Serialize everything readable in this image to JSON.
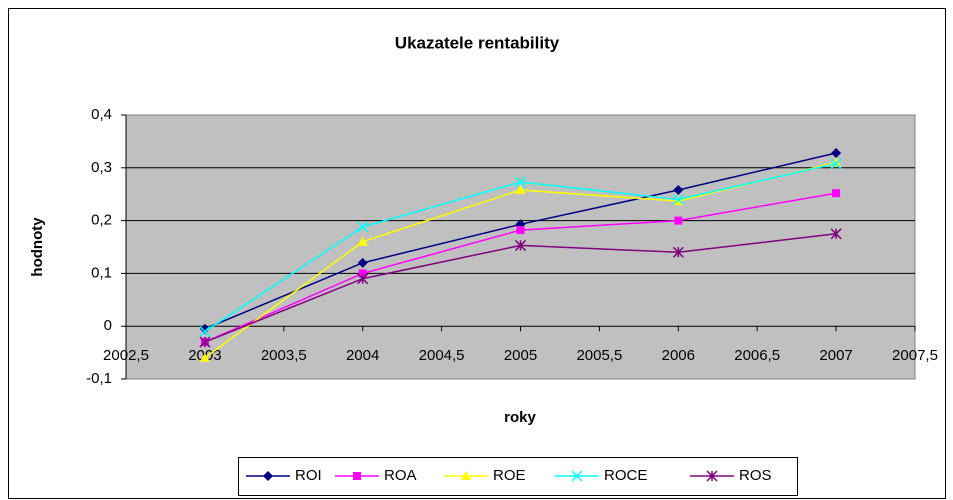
{
  "chart_data": {
    "type": "line",
    "title": "Ukazatele rentability",
    "x_label": "roky",
    "y_label": "hodnoty",
    "x": [
      2003,
      2004,
      2005,
      2006,
      2007
    ],
    "xlim": [
      2002.5,
      2007.5
    ],
    "xticks": [
      {
        "value": 2002.5,
        "label": "2002,5"
      },
      2003,
      {
        "value": 2003.5,
        "label": "2003,5"
      },
      2004,
      {
        "value": 2004.5,
        "label": "2004,5"
      },
      2005,
      {
        "value": 2005.5,
        "label": "2005,5"
      },
      2006,
      {
        "value": 2006.5,
        "label": "2006,5"
      },
      2007,
      {
        "value": 2007.5,
        "label": "2007,5"
      }
    ],
    "ylim": [
      -0.1,
      0.4
    ],
    "yticks": [
      {
        "value": -0.1,
        "label": "-0,1"
      },
      0,
      {
        "value": 0.1,
        "label": "0,1"
      },
      {
        "value": 0.2,
        "label": "0,2"
      },
      {
        "value": 0.3,
        "label": "0,3"
      },
      {
        "value": 0.4,
        "label": "0,4"
      }
    ],
    "grid": true,
    "legend": "bottom",
    "series": [
      {
        "name": "ROI",
        "color": "#000080",
        "marker": "diamond",
        "values": [
          -0.005,
          0.12,
          0.193,
          0.258,
          0.328
        ]
      },
      {
        "name": "ROA",
        "color": "#ff00ff",
        "marker": "square",
        "values": [
          -0.03,
          0.1,
          0.182,
          0.2,
          0.252
        ]
      },
      {
        "name": "ROE",
        "color": "#ffff00",
        "marker": "triangle",
        "values": [
          -0.06,
          0.16,
          0.258,
          0.237,
          0.31
        ]
      },
      {
        "name": "ROCE",
        "color": "#00ffff",
        "marker": "x",
        "values": [
          -0.01,
          0.188,
          0.273,
          0.24,
          0.308
        ]
      },
      {
        "name": "ROS",
        "color": "#800080",
        "marker": "star",
        "values": [
          -0.03,
          0.09,
          0.153,
          0.14,
          0.175
        ]
      }
    ]
  }
}
